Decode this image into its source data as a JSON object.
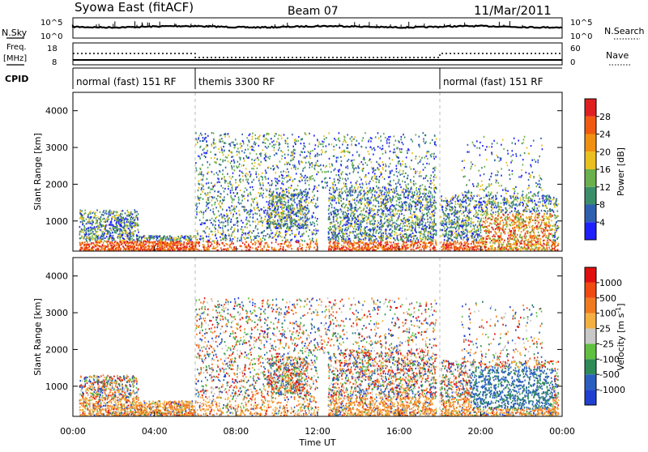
{
  "header": {
    "station": "Syowa East (fitACF)",
    "beam": "Beam 07",
    "date": "11/Mar/2011"
  },
  "top_panel": {
    "left_label": "N.Sky",
    "left_ticks": [
      "10^5",
      "10^0"
    ],
    "right_ticks": [
      "10^5",
      "10^0"
    ],
    "right_label": "N.Search"
  },
  "freq_panel": {
    "label_line1": "Freq.",
    "label_line2": "[MHz]",
    "left_ticks": [
      "18",
      "8"
    ],
    "right_ticks": [
      "60",
      "0"
    ],
    "right_label": "Nave"
  },
  "cpid": {
    "label": "CPID",
    "segments": [
      {
        "text": "normal (fast) 151 RF",
        "start_hour": 0
      },
      {
        "text": "themis 3300 RF",
        "start_hour": 6
      },
      {
        "text": "normal (fast) 151 RF",
        "start_hour": 18
      }
    ]
  },
  "colors": {
    "power": [
      "#2020ff",
      "#2f5fb0",
      "#3a8f6a",
      "#6ab04c",
      "#e8c020",
      "#f09010",
      "#f05a10",
      "#e02020"
    ],
    "velocity": [
      "#e01010",
      "#f04a10",
      "#f07a20",
      "#f4b040",
      "#c8c8c8",
      "#60c040",
      "#2e8b57",
      "#2a5fc0",
      "#2040d0"
    ]
  },
  "chart_data": [
    {
      "type": "heatmap",
      "name": "power",
      "x": {
        "label": "Time UT",
        "range_hours": [
          0,
          24
        ],
        "ticks": [
          "00:00",
          "04:00",
          "08:00",
          "12:00",
          "16:00",
          "20:00",
          "00:00"
        ]
      },
      "y": {
        "label": "Slant Range [km]",
        "range": [
          180,
          4500
        ],
        "ticks": [
          1000,
          2000,
          3000,
          4000
        ]
      },
      "colorbar": {
        "label": "Power [dB]",
        "range": [
          0,
          32
        ],
        "ticks": [
          4,
          8,
          12,
          16,
          20,
          24,
          28
        ]
      },
      "cpid_boundaries_hours": [
        6,
        18
      ]
    },
    {
      "type": "heatmap",
      "name": "velocity",
      "x": {
        "label": "Time UT",
        "range_hours": [
          0,
          24
        ],
        "ticks": [
          "00:00",
          "04:00",
          "08:00",
          "12:00",
          "16:00",
          "20:00",
          "00:00"
        ]
      },
      "y": {
        "label": "Slant Range [km]",
        "range": [
          180,
          4500
        ],
        "ticks": [
          1000,
          2000,
          3000,
          4000
        ]
      },
      "colorbar": {
        "label": "Velocity [m s^-1]",
        "ticks": [
          -1000,
          -500,
          -100,
          -25,
          25,
          100,
          500,
          1000
        ]
      }
    }
  ],
  "xlabel": "Time UT"
}
